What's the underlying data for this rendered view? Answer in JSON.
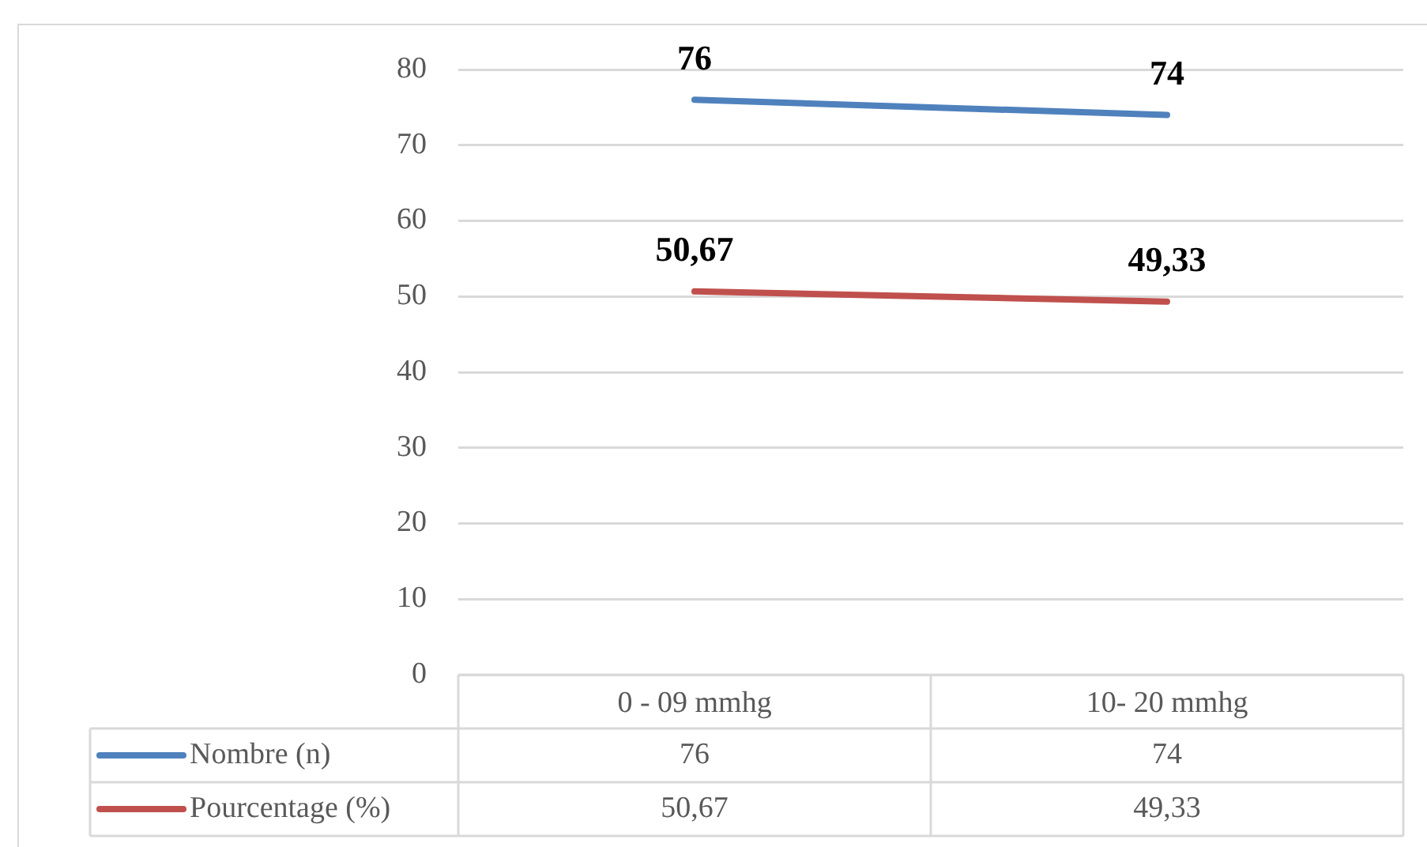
{
  "chart_data": {
    "type": "line",
    "categories": [
      "0 - 09 mmhg",
      "10- 20 mmhg"
    ],
    "series": [
      {
        "name": "Nombre (n)",
        "color": "#4f81bd",
        "values": [
          76,
          74
        ],
        "value_labels": [
          "76",
          "74"
        ]
      },
      {
        "name": "Pourcentage (%)",
        "color": "#c0504d",
        "values": [
          50.67,
          49.33
        ],
        "value_labels": [
          "50,67",
          "49,33"
        ]
      }
    ],
    "ylim": [
      0,
      80
    ],
    "yticks": [
      0,
      10,
      20,
      30,
      40,
      50,
      60,
      70,
      80
    ],
    "grid": "y",
    "legend": "bottom",
    "marker": "none",
    "line_style": "solid"
  }
}
